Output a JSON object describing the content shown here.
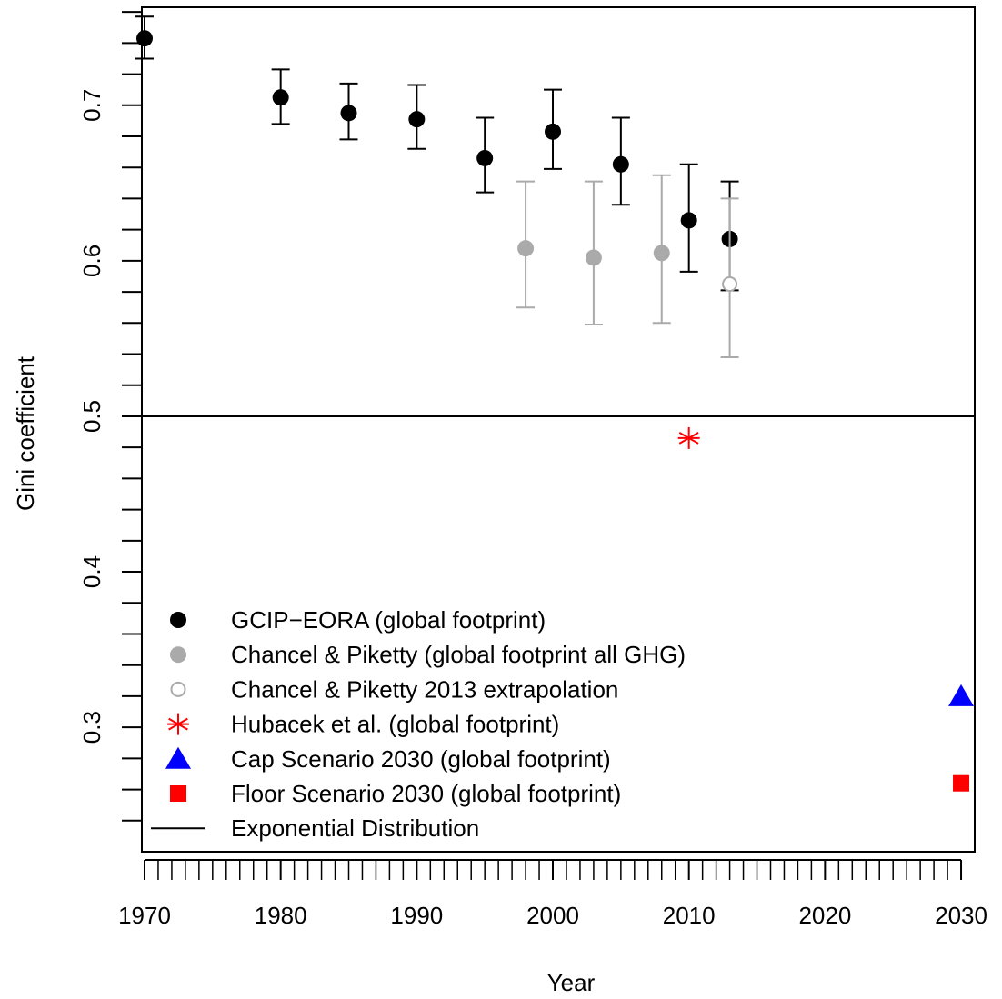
{
  "chart_data": {
    "type": "scatter",
    "title": "",
    "xlabel": "Year",
    "ylabel": "Gini coefficient",
    "xlim": [
      1969.8,
      2031.0
    ],
    "ylim": [
      0.22,
      0.763
    ],
    "x_ticks": [
      1970,
      1980,
      1990,
      2000,
      2010,
      2020,
      2030
    ],
    "x_tick_labels": [
      "1970",
      "1980",
      "1990",
      "2000",
      "2010",
      "2020",
      "2030"
    ],
    "x_minor_step": 1,
    "y_ticks": [
      0.3,
      0.4,
      0.5,
      0.6,
      0.7
    ],
    "y_tick_labels": [
      "0.3",
      "0.4",
      "0.5",
      "0.6",
      "0.7"
    ],
    "y_minor_step": 0.02,
    "grid": false,
    "legend_position": "bottom-left",
    "series": [
      {
        "name": "GCIP−EORA (global footprint)",
        "marker": "filled-circle",
        "color": "#000000",
        "points": [
          {
            "x": 1970,
            "y": 0.743,
            "low": 0.73,
            "high": 0.757
          },
          {
            "x": 1980,
            "y": 0.705,
            "low": 0.688,
            "high": 0.723
          },
          {
            "x": 1985,
            "y": 0.695,
            "low": 0.678,
            "high": 0.714
          },
          {
            "x": 1990,
            "y": 0.691,
            "low": 0.672,
            "high": 0.713
          },
          {
            "x": 1995,
            "y": 0.666,
            "low": 0.644,
            "high": 0.692
          },
          {
            "x": 2000,
            "y": 0.683,
            "low": 0.659,
            "high": 0.71
          },
          {
            "x": 2005,
            "y": 0.662,
            "low": 0.636,
            "high": 0.692
          },
          {
            "x": 2010,
            "y": 0.626,
            "low": 0.593,
            "high": 0.662
          },
          {
            "x": 2013,
            "y": 0.614,
            "low": 0.581,
            "high": 0.651
          }
        ]
      },
      {
        "name": "Chancel & Piketty (global footprint all GHG)",
        "marker": "filled-circle",
        "color": "#aaaaaa",
        "points": [
          {
            "x": 1998,
            "y": 0.608,
            "low": 0.57,
            "high": 0.651
          },
          {
            "x": 2003,
            "y": 0.602,
            "low": 0.559,
            "high": 0.651
          },
          {
            "x": 2008,
            "y": 0.605,
            "low": 0.56,
            "high": 0.655
          }
        ]
      },
      {
        "name": "Chancel & Piketty 2013 extrapolation",
        "marker": "open-circle",
        "color": "#aaaaaa",
        "points": [
          {
            "x": 2013,
            "y": 0.585,
            "low": 0.538,
            "high": 0.64
          }
        ]
      },
      {
        "name": "Hubacek et al. (global footprint)",
        "marker": "asterisk",
        "color": "#ff0000",
        "points": [
          {
            "x": 2010,
            "y": 0.486
          }
        ]
      },
      {
        "name": "Cap Scenario 2030 (global footprint)",
        "marker": "triangle",
        "color": "#0000ff",
        "points": [
          {
            "x": 2030,
            "y": 0.32
          }
        ]
      },
      {
        "name": "Floor Scenario 2030 (global footprint)",
        "marker": "square",
        "color": "#ff0000",
        "points": [
          {
            "x": 2030,
            "y": 0.264
          }
        ]
      }
    ],
    "reference_line": {
      "name": "Exponential Distribution",
      "y": 0.5,
      "color": "#000000"
    }
  }
}
